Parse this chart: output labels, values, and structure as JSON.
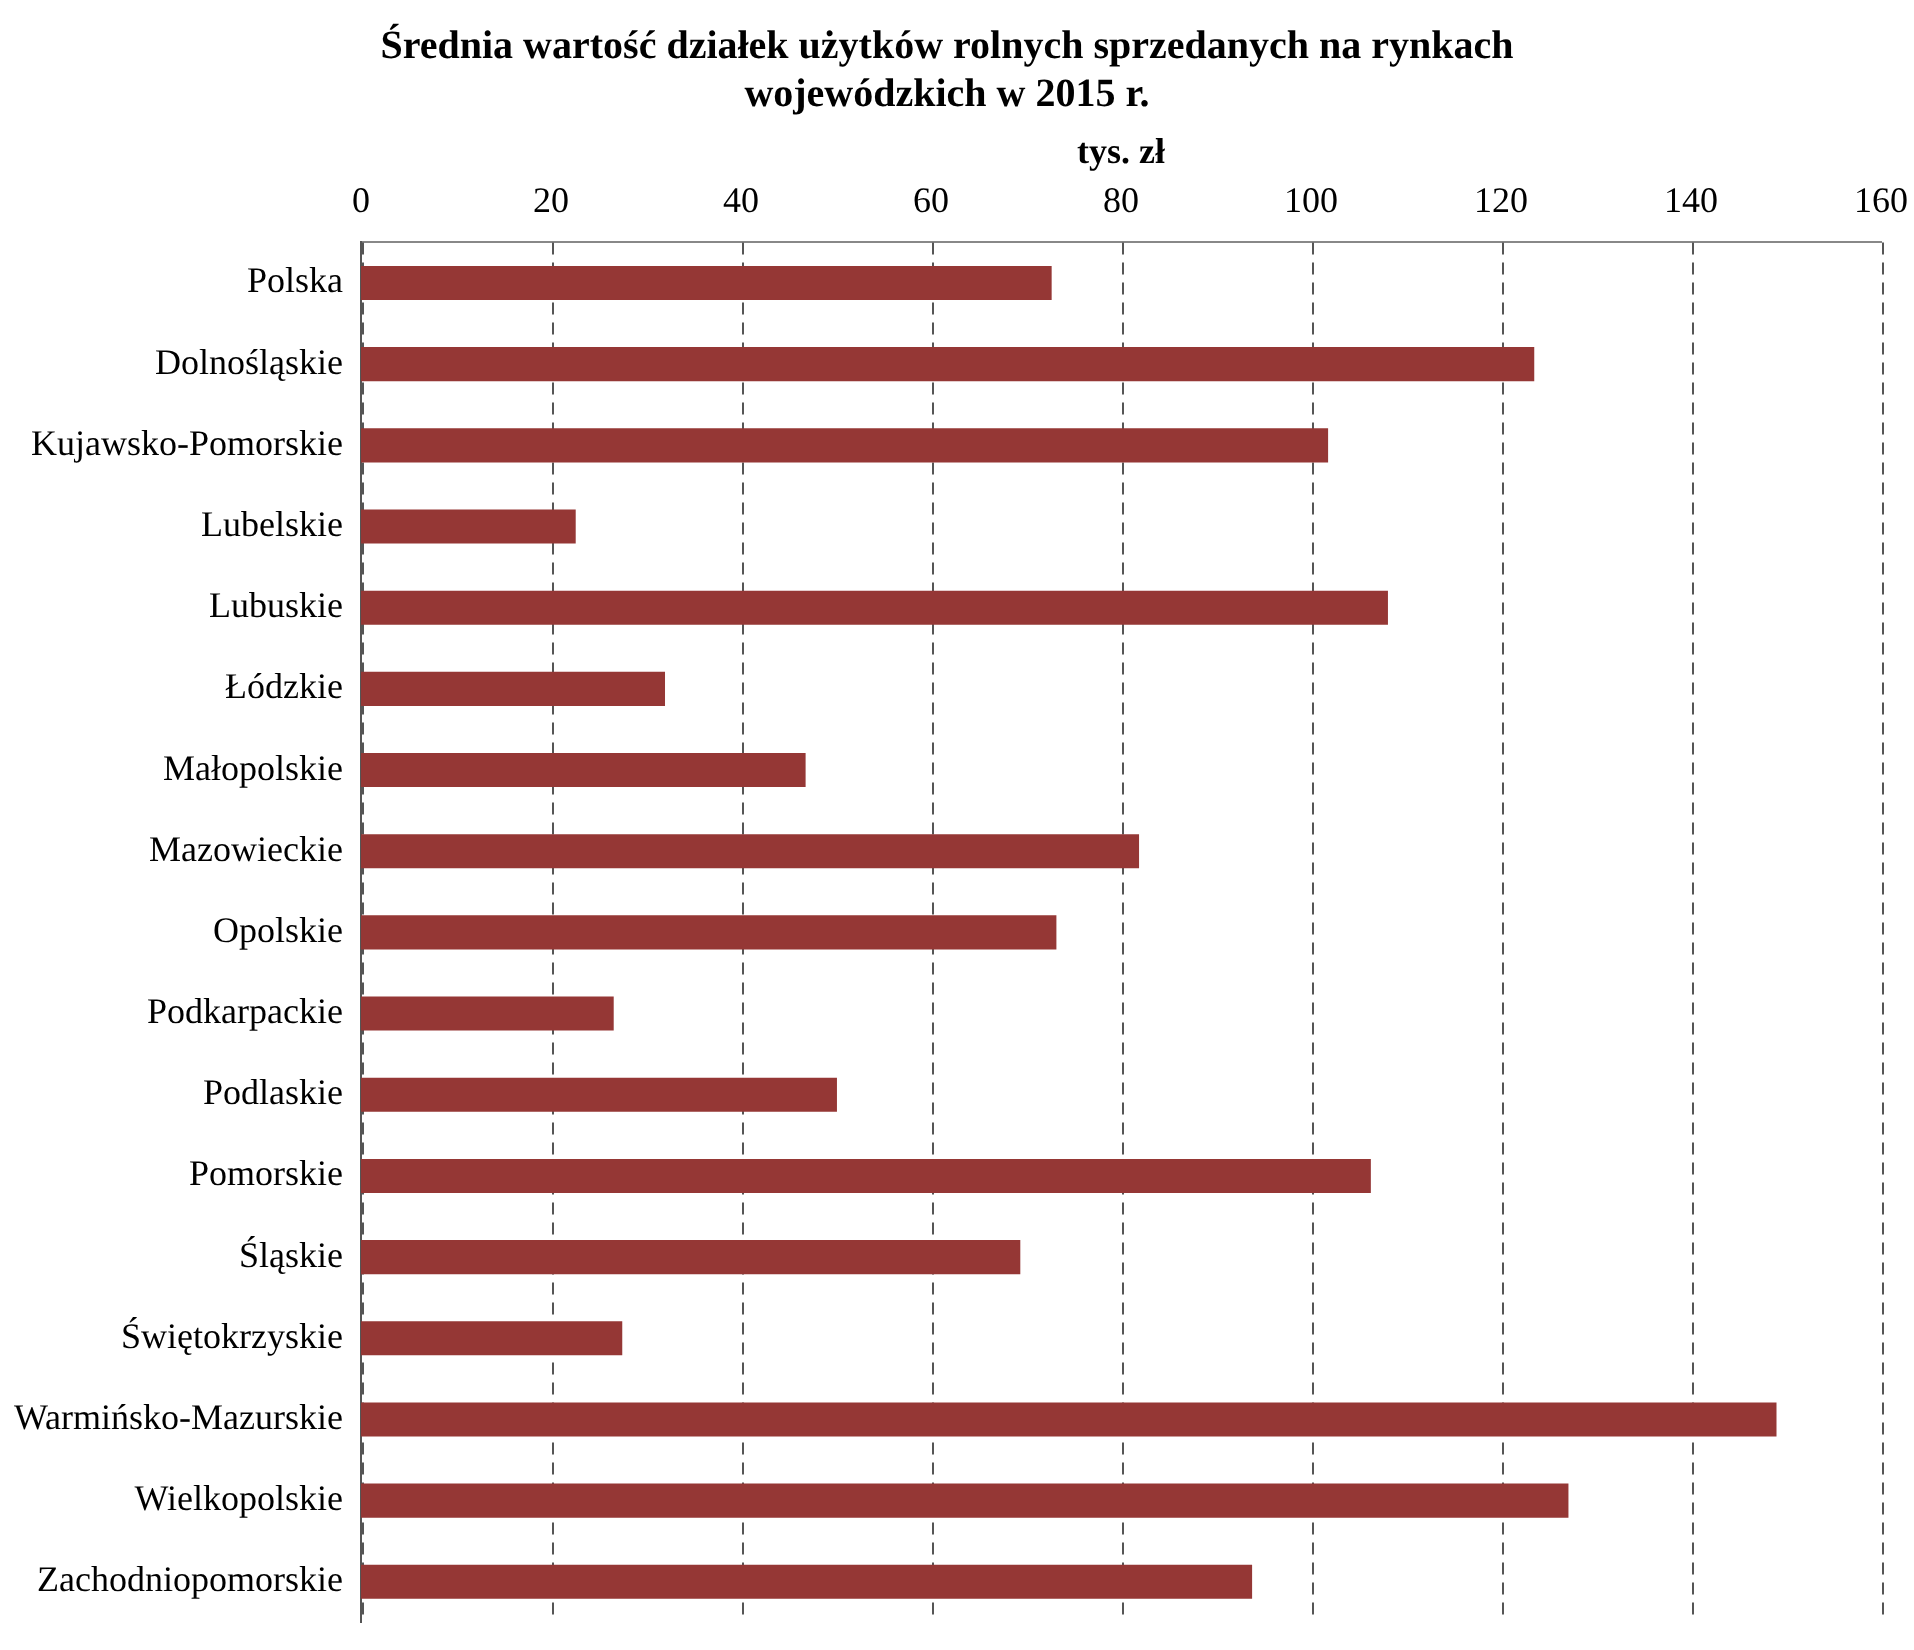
{
  "chart_data": {
    "type": "bar",
    "orientation": "horizontal",
    "title": "Średnia wartość działek użytków rolnych sprzedanych na rynkach wojewódzkich w 2015 r.",
    "xlabel": "tys. zł",
    "categories": [
      "Polska",
      "Dolnośląskie",
      "Kujawsko-Pomorskie",
      "Lubelskie",
      "Lubuskie",
      "Łódzkie",
      "Małopolskie",
      "Mazowieckie",
      "Opolskie",
      "Podkarpackie",
      "Podlaskie",
      "Pomorskie",
      "Śląskie",
      "Świętokrzyskie",
      "Warmińsko-Mazurskie",
      "Wielkopolskie",
      "Zachodniopomorskie"
    ],
    "values": [
      72.7,
      123.5,
      101.8,
      22.6,
      108.1,
      32,
      46.8,
      81.9,
      73.2,
      26.6,
      50.1,
      106.3,
      69.4,
      27.5,
      149,
      127.1,
      93.8
    ],
    "color": "#953735",
    "xlim": [
      0,
      160
    ],
    "xticks": [
      0,
      20,
      40,
      60,
      80,
      100,
      120,
      140,
      160
    ],
    "grid": "x",
    "legend": false
  }
}
